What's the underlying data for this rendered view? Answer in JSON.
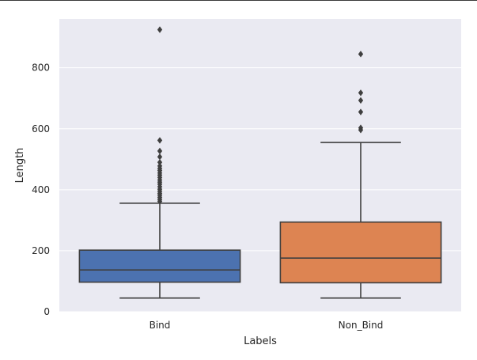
{
  "chart_data": {
    "type": "box",
    "title": "",
    "xlabel": "Labels",
    "ylabel": "Length",
    "ylim": [
      0,
      960
    ],
    "yticks": [
      0,
      200,
      400,
      600,
      800
    ],
    "yticks_text": [
      "0",
      "200",
      "400",
      "600",
      "800"
    ],
    "grid": true,
    "categories": [
      "Bind",
      "Non_Bind"
    ],
    "boxes": [
      {
        "name": "Bind",
        "color": "#4C72B0",
        "whisker_low": 45,
        "q1": 97,
        "median": 137,
        "q3": 202,
        "whisker_high": 356,
        "outliers": [
          362,
          368,
          375,
          382,
          388,
          395,
          402,
          410,
          418,
          425,
          432,
          440,
          448,
          455,
          463,
          470,
          478,
          490,
          508,
          527,
          562,
          925
        ]
      },
      {
        "name": "Non_Bind",
        "color": "#DD8452",
        "whisker_low": 45,
        "q1": 95,
        "median": 176,
        "q3": 294,
        "whisker_high": 555,
        "outliers": [
          596,
          603,
          655,
          693,
          718,
          845
        ]
      }
    ],
    "colors": {
      "background": "#EAEAF2",
      "grid": "#FFFFFF",
      "line": "#3F3F3F"
    }
  }
}
